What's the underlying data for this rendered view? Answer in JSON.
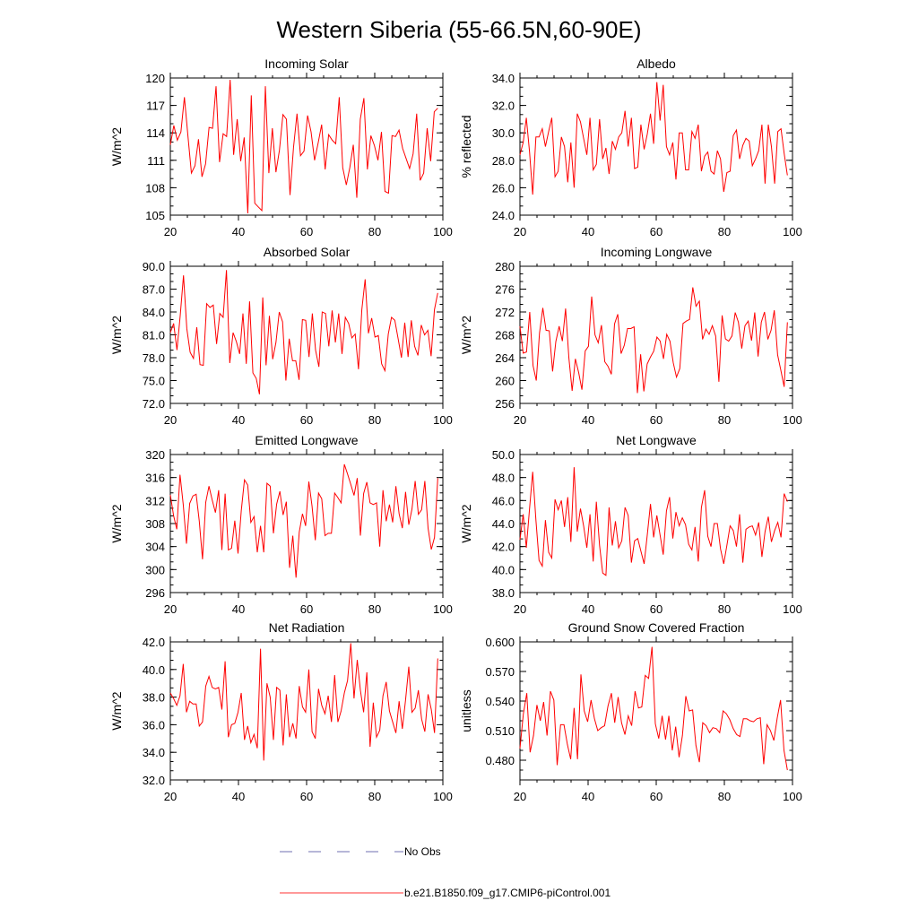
{
  "figure_title": "Western Siberia (55-66.5N,60-90E)",
  "legend": [
    {
      "label": "No Obs",
      "color": "#6f6fb0",
      "style": "dashed"
    },
    {
      "label": "b.e21.B1850.f09_g17.CMIP6-piControl.001",
      "color": "#ff3333",
      "style": "solid"
    }
  ],
  "chart_data": [
    {
      "type": "line",
      "title": "Incoming Solar",
      "ylabel": "W/m^2",
      "xlim": [
        20,
        100
      ],
      "ylim": [
        105,
        120
      ],
      "yticks": [
        105,
        108,
        111,
        114,
        117,
        120
      ],
      "ytick_decimals": 0,
      "xticks": [
        20,
        40,
        60,
        80,
        100
      ],
      "x_start": 20,
      "series": [
        {
          "color": "#ff0000",
          "values": [
            112.7,
            114.8,
            113.2,
            114.1,
            117.9,
            113.7,
            109.6,
            110.4,
            113.3,
            109.2,
            110.6,
            114.6,
            114.5,
            119.1,
            110.8,
            113.9,
            113.6,
            119.8,
            111.6,
            115.5,
            110.9,
            113.5,
            105.2,
            118.1,
            106.3,
            105.9,
            105.5,
            119.1,
            109.6,
            114.5,
            109.7,
            112.1,
            116.0,
            115.5,
            107.2,
            112.4,
            116.1,
            111.5,
            112.0,
            115.9,
            114.1,
            111.0,
            112.9,
            114.9,
            110.0,
            113.8,
            113.2,
            112.8,
            117.9,
            110.2,
            108.3,
            110.2,
            112.7,
            106.9,
            115.5,
            117.8,
            110.0,
            113.7,
            112.6,
            111.0,
            114.1,
            107.6,
            107.4,
            113.7,
            113.6,
            114.3,
            112.3,
            111.2,
            110.1,
            111.7,
            116.1,
            108.8,
            109.6,
            114.5,
            110.9,
            116.3,
            116.7
          ]
        }
      ]
    },
    {
      "type": "line",
      "title": "Albedo",
      "ylabel": "% reflected",
      "xlim": [
        20,
        100
      ],
      "ylim": [
        24.0,
        34.0
      ],
      "yticks": [
        24.0,
        26.0,
        28.0,
        30.0,
        32.0,
        34.0
      ],
      "ytick_decimals": 1,
      "xticks": [
        20,
        40,
        60,
        80,
        100
      ],
      "x_start": 20,
      "series": [
        {
          "color": "#ff0000",
          "values": [
            28.4,
            29.3,
            31.1,
            28.6,
            25.5,
            29.7,
            29.7,
            30.3,
            29.0,
            30.1,
            31.1,
            26.8,
            27.2,
            29.7,
            29.0,
            26.4,
            29.3,
            26.0,
            31.4,
            30.8,
            29.6,
            28.4,
            31.1,
            27.3,
            27.7,
            31.0,
            28.1,
            28.9,
            27.0,
            29.4,
            28.8,
            29.7,
            30.0,
            31.6,
            29.0,
            31.1,
            27.4,
            27.5,
            30.6,
            28.8,
            29.9,
            31.4,
            29.2,
            33.7,
            30.9,
            33.5,
            29.0,
            28.4,
            29.3,
            26.6,
            30.0,
            30.0,
            27.3,
            27.3,
            30.1,
            29.6,
            30.6,
            27.2,
            28.3,
            28.6,
            27.2,
            27.0,
            28.7,
            28.1,
            25.7,
            27.1,
            27.2,
            29.8,
            30.2,
            28.1,
            29.1,
            29.6,
            29.4,
            27.6,
            28.1,
            28.7,
            30.6,
            26.3,
            30.6,
            29.0,
            26.3,
            30.1,
            30.3,
            28.5,
            26.9
          ]
        }
      ]
    },
    {
      "type": "line",
      "title": "Absorbed Solar",
      "ylabel": "W/m^2",
      "xlim": [
        20,
        100
      ],
      "ylim": [
        72.0,
        90.0
      ],
      "yticks": [
        72.0,
        75.0,
        78.0,
        81.0,
        84.0,
        87.0,
        90.0
      ],
      "ytick_decimals": 1,
      "xticks": [
        20,
        40,
        60,
        80,
        100
      ],
      "x_start": 20,
      "series": [
        {
          "color": "#ff0000",
          "values": [
            81.3,
            82.5,
            79.0,
            83.5,
            88.8,
            81.8,
            78.7,
            77.9,
            82.0,
            77.1,
            77.0,
            85.1,
            84.6,
            84.9,
            79.8,
            83.8,
            83.3,
            89.5,
            77.3,
            81.3,
            80.1,
            78.5,
            83.8,
            77.2,
            85.4,
            76.0,
            75.3,
            73.2,
            85.9,
            77.0,
            83.5,
            77.8,
            80.0,
            84.0,
            82.7,
            75.0,
            80.5,
            77.6,
            77.6,
            75.1,
            83.0,
            82.9,
            78.1,
            83.8,
            79.0,
            76.8,
            84.0,
            83.8,
            79.5,
            84.2,
            80.0,
            83.8,
            78.5,
            83.3,
            82.5,
            80.6,
            81.1,
            76.5,
            84.3,
            88.3,
            81.2,
            83.2,
            80.7,
            80.9,
            77.2,
            76.3,
            81.1,
            83.3,
            82.9,
            80.5,
            78.0,
            82.6,
            78.1,
            82.9,
            79.5,
            78.3,
            82.3,
            81.0,
            81.6,
            78.2,
            84.3,
            86.5
          ]
        }
      ]
    },
    {
      "type": "line",
      "title": "Incoming Longwave",
      "ylabel": "W/m^2",
      "xlim": [
        20,
        100
      ],
      "ylim": [
        256,
        280
      ],
      "yticks": [
        256,
        260,
        264,
        268,
        272,
        276,
        280
      ],
      "ytick_decimals": 0,
      "xticks": [
        20,
        40,
        60,
        80,
        100
      ],
      "x_start": 20,
      "series": [
        {
          "color": "#ff0000",
          "values": [
            269.5,
            264.8,
            265.0,
            272.0,
            262.6,
            260.0,
            268.3,
            272.7,
            268.8,
            268.7,
            261.6,
            266.8,
            269.5,
            266.9,
            272.6,
            263.9,
            258.2,
            263.8,
            261.4,
            258.4,
            265.2,
            266.0,
            274.7,
            268.0,
            266.6,
            269.7,
            263.3,
            262.5,
            261.1,
            269.9,
            271.6,
            264.7,
            266.2,
            269.1,
            269.1,
            269.4,
            257.8,
            264.6,
            258.1,
            262.9,
            264.1,
            265.1,
            267.6,
            266.9,
            263.8,
            268.1,
            266.9,
            263.1,
            260.6,
            262.1,
            270.0,
            270.4,
            270.7,
            276.3,
            273.0,
            273.9,
            267.2,
            269.0,
            268.1,
            269.6,
            267.8,
            259.8,
            271.4,
            267.3,
            266.9,
            267.8,
            271.9,
            270.2,
            265.6,
            269.6,
            270.4,
            267.0,
            271.9,
            264.2,
            270.2,
            272.0,
            267.2,
            268.8,
            272.3,
            264.5,
            261.8,
            258.9,
            270.2
          ]
        }
      ]
    },
    {
      "type": "line",
      "title": "Emitted Longwave",
      "ylabel": "W/m^2",
      "xlim": [
        20,
        100
      ],
      "ylim": [
        296,
        320
      ],
      "yticks": [
        296,
        300,
        304,
        308,
        312,
        316,
        320
      ],
      "ytick_decimals": 0,
      "xticks": [
        20,
        40,
        60,
        80,
        100
      ],
      "x_start": 20,
      "series": [
        {
          "color": "#ff0000",
          "values": [
            313.0,
            309.4,
            307.0,
            316.5,
            311.3,
            304.5,
            311.5,
            312.8,
            313.1,
            308.4,
            301.8,
            311.7,
            314.5,
            312.1,
            309.9,
            313.8,
            303.4,
            313.2,
            303.4,
            303.7,
            308.5,
            302.8,
            310.2,
            315.6,
            314.7,
            308.2,
            309.2,
            303.0,
            307.6,
            303.0,
            315.0,
            314.5,
            306.3,
            311.4,
            313.6,
            309.5,
            311.8,
            300.3,
            305.9,
            298.6,
            306.5,
            309.7,
            307.6,
            315.3,
            311.0,
            305.1,
            313.3,
            312.3,
            305.9,
            306.3,
            306.3,
            313.3,
            312.5,
            311.6,
            318.3,
            316.6,
            314.8,
            312.9,
            315.9,
            305.9,
            313.2,
            315.2,
            311.6,
            311.3,
            311.6,
            304.0,
            313.8,
            308.4,
            311.3,
            308.2,
            314.5,
            309.7,
            307.2,
            313.5,
            307.8,
            310.5,
            315.4,
            309.6,
            310.4,
            315.4,
            307.2,
            303.5,
            305.6,
            315.9
          ]
        }
      ]
    },
    {
      "type": "line",
      "title": "Net Longwave",
      "ylabel": "W/m^2",
      "xlim": [
        20,
        100
      ],
      "ylim": [
        38.0,
        50.0
      ],
      "yticks": [
        38.0,
        40.0,
        42.0,
        44.0,
        46.0,
        48.0,
        50.0
      ],
      "ytick_decimals": 1,
      "xticks": [
        20,
        40,
        60,
        80,
        100
      ],
      "x_start": 20,
      "series": [
        {
          "color": "#ff0000",
          "values": [
            42.6,
            44.8,
            41.9,
            45.3,
            48.5,
            44.3,
            40.8,
            40.3,
            44.3,
            41.5,
            41.0,
            46.1,
            45.2,
            46.0,
            43.7,
            46.3,
            42.4,
            48.9,
            43.3,
            45.3,
            43.8,
            41.9,
            44.8,
            40.7,
            45.9,
            42.1,
            39.7,
            39.5,
            45.4,
            42.1,
            44.2,
            41.9,
            42.5,
            45.4,
            44.7,
            40.6,
            42.5,
            42.7,
            41.6,
            40.5,
            43.0,
            45.7,
            42.8,
            44.7,
            43.0,
            41.3,
            45.1,
            46.3,
            42.7,
            45.0,
            43.8,
            44.5,
            43.9,
            42.2,
            41.7,
            43.7,
            40.7,
            45.4,
            46.9,
            42.9,
            42.0,
            44.0,
            44.0,
            41.8,
            40.5,
            42.1,
            43.8,
            43.4,
            42.0,
            44.8,
            40.6,
            43.5,
            43.7,
            43.8,
            43.0,
            44.1,
            41.1,
            43.3,
            44.6,
            42.4,
            43.4,
            44.1,
            42.8,
            46.6,
            45.9
          ]
        }
      ]
    },
    {
      "type": "line",
      "title": "Net Radiation",
      "ylabel": "W/m^2",
      "xlim": [
        20,
        100
      ],
      "ylim": [
        32.0,
        42.0
      ],
      "yticks": [
        32.0,
        34.0,
        36.0,
        38.0,
        40.0,
        42.0
      ],
      "ytick_decimals": 1,
      "xticks": [
        20,
        40,
        60,
        80,
        100
      ],
      "x_start": 20,
      "series": [
        {
          "color": "#ff0000",
          "values": [
            38.3,
            37.9,
            37.4,
            38.1,
            40.4,
            36.9,
            37.7,
            37.5,
            37.5,
            35.9,
            36.2,
            38.8,
            39.5,
            38.7,
            38.6,
            38.7,
            37.1,
            40.6,
            35.1,
            36.0,
            36.1,
            36.9,
            38.3,
            34.9,
            35.9,
            34.7,
            35.3,
            34.3,
            41.5,
            33.4,
            39.0,
            38.0,
            34.9,
            38.7,
            38.5,
            34.5,
            38.2,
            35.1,
            36.1,
            35.0,
            38.8,
            37.3,
            36.9,
            40.0,
            35.5,
            35.0,
            38.6,
            37.4,
            36.8,
            38.1,
            36.2,
            39.6,
            36.2,
            37.0,
            38.3,
            39.2,
            41.9,
            37.9,
            40.7,
            38.5,
            36.9,
            39.8,
            34.4,
            37.6,
            35.1,
            35.6,
            38.1,
            39.1,
            37.0,
            36.2,
            35.4,
            37.7,
            35.7,
            37.8,
            40.2,
            36.9,
            37.2,
            38.5,
            36.4,
            35.5,
            38.2,
            37.1,
            35.4,
            40.8
          ]
        }
      ]
    },
    {
      "type": "line",
      "title": "Ground Snow Covered Fraction",
      "ylabel": "unitless",
      "xlim": [
        20,
        100
      ],
      "ylim": [
        0.46,
        0.6
      ],
      "yticks": [
        0.48,
        0.51,
        0.54,
        0.57,
        0.6
      ],
      "ytick_decimals": 3,
      "xticks": [
        20,
        40,
        60,
        80,
        100
      ],
      "x_start": 20,
      "series": [
        {
          "color": "#ff0000",
          "values": [
            0.492,
            0.527,
            0.548,
            0.488,
            0.505,
            0.536,
            0.52,
            0.539,
            0.505,
            0.55,
            0.541,
            0.475,
            0.516,
            0.516,
            0.496,
            0.481,
            0.533,
            0.481,
            0.567,
            0.53,
            0.519,
            0.541,
            0.522,
            0.51,
            0.513,
            0.515,
            0.535,
            0.548,
            0.518,
            0.544,
            0.518,
            0.506,
            0.525,
            0.515,
            0.55,
            0.533,
            0.534,
            0.566,
            0.563,
            0.595,
            0.517,
            0.502,
            0.525,
            0.501,
            0.525,
            0.49,
            0.514,
            0.483,
            0.505,
            0.545,
            0.53,
            0.531,
            0.495,
            0.478,
            0.518,
            0.515,
            0.508,
            0.513,
            0.512,
            0.508,
            0.53,
            0.527,
            0.521,
            0.512,
            0.506,
            0.504,
            0.522,
            0.522,
            0.52,
            0.519,
            0.522,
            0.523,
            0.476,
            0.516,
            0.51,
            0.5,
            0.523,
            0.541,
            0.49,
            0.47
          ]
        }
      ]
    }
  ]
}
